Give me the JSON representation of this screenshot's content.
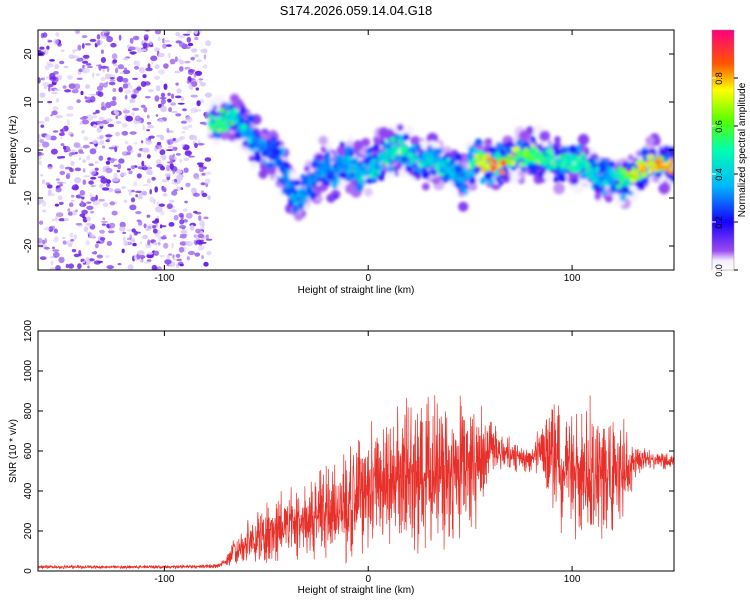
{
  "figure_title": "S174.2026.059.14.04.G18",
  "colors": {
    "background": "#ffffff",
    "snr_line": "#e8302a",
    "spectrogram_scatter": "#7b2ff0"
  },
  "chart_data": [
    {
      "type": "heatmap",
      "name": "spectrogram",
      "title": "S174.2026.059.14.04.G18",
      "xlabel": "Height of straight line (km)",
      "ylabel": "Frequency (Hz)",
      "xlim": [
        -162,
        150
      ],
      "ylim": [
        -25,
        25
      ],
      "xticks": [
        -100,
        0,
        100
      ],
      "yticks": [
        -20,
        -10,
        0,
        10,
        20
      ],
      "noise_region": {
        "x_range": [
          -162,
          -78
        ],
        "y_range": [
          -25,
          25
        ]
      },
      "signal_track": {
        "x": [
          -78,
          -72,
          -66,
          -60,
          -55,
          -50,
          -45,
          -40,
          -36,
          -32,
          -28,
          -24,
          -20,
          -16,
          -12,
          -8,
          -4,
          0,
          4,
          8,
          12,
          16,
          20,
          24,
          28,
          32,
          36,
          40,
          44,
          46,
          48,
          50,
          54,
          58,
          62,
          66,
          70,
          74,
          78,
          82,
          86,
          90,
          94,
          98,
          102,
          106,
          110,
          114,
          118,
          122,
          126,
          130,
          134,
          138,
          142,
          146,
          150
        ],
        "y": [
          5,
          6,
          7,
          4,
          2,
          0,
          -1,
          -6,
          -10,
          -9,
          -7,
          -4,
          -3,
          -6,
          -2,
          -3,
          -5,
          -4,
          -3,
          -1,
          0,
          1,
          -1,
          -2,
          -3,
          -2,
          -3,
          -4,
          -5,
          -8,
          -6,
          -3,
          -2,
          -3,
          -3,
          -3,
          -2,
          -1,
          -1,
          -1,
          -2,
          -2,
          -3,
          -2,
          -3,
          -3,
          -5,
          -6,
          -5,
          -6,
          -6,
          -5,
          -4,
          -3,
          -3,
          -3,
          -3
        ],
        "intensity": [
          0.5,
          0.5,
          0.45,
          0.35,
          0.3,
          0.25,
          0.25,
          0.3,
          0.3,
          0.3,
          0.3,
          0.3,
          0.3,
          0.3,
          0.35,
          0.35,
          0.35,
          0.35,
          0.35,
          0.4,
          0.45,
          0.5,
          0.45,
          0.4,
          0.4,
          0.4,
          0.4,
          0.35,
          0.35,
          0.3,
          0.3,
          0.5,
          0.7,
          0.8,
          0.85,
          0.85,
          0.6,
          0.55,
          0.55,
          0.55,
          0.5,
          0.5,
          0.45,
          0.45,
          0.45,
          0.45,
          0.4,
          0.35,
          0.35,
          0.45,
          0.55,
          0.7,
          0.8,
          0.8,
          0.8,
          0.8,
          0.8
        ]
      },
      "colorbar": {
        "label": "Normalized spectral amplitude",
        "range": [
          0.0,
          1.0
        ],
        "ticks": [
          "0.0",
          "0.2",
          "0.4",
          "0.6",
          "0.8"
        ],
        "tick_values": [
          0.0,
          0.2,
          0.4,
          0.6,
          0.8
        ],
        "colormap_stops": [
          {
            "v": 0.0,
            "c": "#ffffff"
          },
          {
            "v": 0.04,
            "c": "#f3ecff"
          },
          {
            "v": 0.08,
            "c": "#9a4cf0"
          },
          {
            "v": 0.2,
            "c": "#1600ff"
          },
          {
            "v": 0.35,
            "c": "#00b8ff"
          },
          {
            "v": 0.5,
            "c": "#00ffb0"
          },
          {
            "v": 0.62,
            "c": "#55ff00"
          },
          {
            "v": 0.75,
            "c": "#ffff00"
          },
          {
            "v": 0.86,
            "c": "#ff5500"
          },
          {
            "v": 1.0,
            "c": "#ff0080"
          }
        ]
      }
    },
    {
      "type": "line",
      "name": "snr",
      "xlabel": "Height of straight line (km)",
      "ylabel": "SNR (10 * v/v)",
      "xlim": [
        -162,
        150
      ],
      "ylim": [
        0,
        1200
      ],
      "xticks": [
        -100,
        0,
        100
      ],
      "yticks": [
        0,
        200,
        400,
        600,
        800,
        1000,
        1200
      ],
      "series": [
        {
          "name": "SNR",
          "envelope": {
            "x": [
              -162,
              -100,
              -75,
              -70,
              -66,
              -60,
              -50,
              -40,
              -30,
              -20,
              -10,
              -5,
              0,
              10,
              20,
              30,
              40,
              50,
              55,
              60,
              65,
              70,
              75,
              80,
              85,
              90,
              95,
              100,
              105,
              110,
              115,
              120,
              125,
              130,
              135,
              140,
              145,
              150
            ],
            "mean": [
              20,
              20,
              25,
              40,
              90,
              130,
              190,
              230,
              270,
              290,
              320,
              400,
              420,
              450,
              480,
              500,
              510,
              520,
              560,
              600,
              590,
              570,
              560,
              560,
              600,
              560,
              520,
              500,
              500,
              490,
              480,
              470,
              500,
              540,
              560,
              560,
              550,
              550
            ],
            "spread": [
              10,
              10,
              12,
              30,
              80,
              120,
              170,
              210,
              240,
              280,
              320,
              330,
              360,
              380,
              420,
              420,
              430,
              380,
              330,
              180,
              120,
              100,
              80,
              90,
              160,
              300,
              360,
              380,
              420,
              420,
              380,
              340,
              280,
              140,
              70,
              60,
              50,
              50
            ]
          }
        }
      ]
    }
  ]
}
